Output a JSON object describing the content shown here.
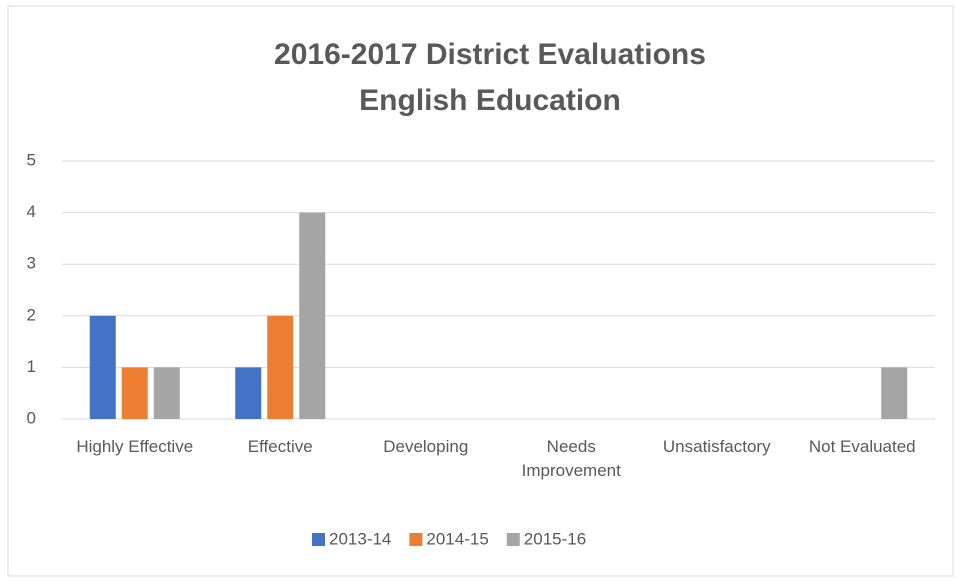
{
  "chart_data": {
    "type": "bar",
    "title": [
      "2016-2017 District Evaluations",
      "English Education"
    ],
    "categories": [
      "Highly Effective",
      "Effective",
      "Developing",
      "Needs Improvement",
      "Unsatisfactory",
      "Not Evaluated"
    ],
    "series": [
      {
        "name": "2013-14",
        "color": "#4472c4",
        "values": [
          2,
          1,
          0,
          0,
          0,
          0
        ]
      },
      {
        "name": "2014-15",
        "color": "#ed7d31",
        "values": [
          1,
          2,
          0,
          0,
          0,
          0
        ]
      },
      {
        "name": "2015-16",
        "color": "#a5a5a5",
        "values": [
          1,
          4,
          0,
          0,
          0,
          1
        ]
      }
    ],
    "ylim": [
      0,
      5
    ],
    "yticks": [
      0,
      1,
      2,
      3,
      4,
      5
    ],
    "grid": true,
    "legend": "bottom"
  }
}
